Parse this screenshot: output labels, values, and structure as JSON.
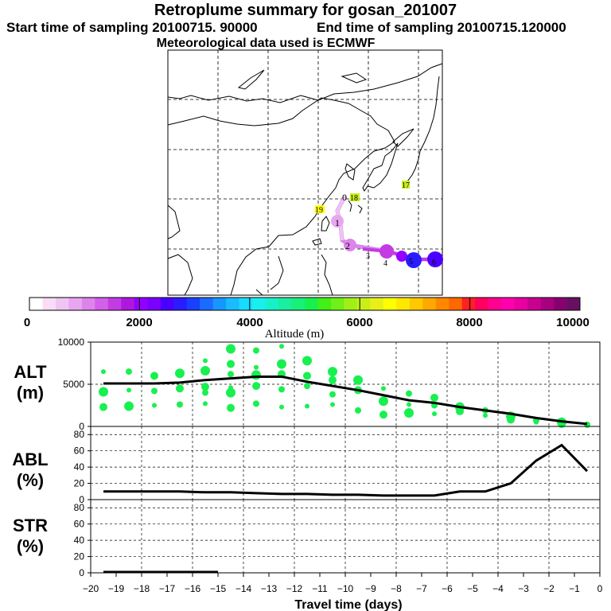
{
  "header": {
    "title": "Retroplume summary for gosan_201007",
    "start_label": "Start time of sampling 20100715. 90000",
    "end_label": "End time of sampling 20100715.120000",
    "met_label": "Meteorological data used is ECMWF"
  },
  "colorbar": {
    "ticks": [
      "0",
      "2000",
      "4000",
      "6000",
      "8000",
      "10000"
    ],
    "label": "Altitude (m)",
    "colors": [
      "#ffffff",
      "#f7ddf7",
      "#f0c4f3",
      "#e8a6f0",
      "#df83ec",
      "#d45fe8",
      "#c43be4",
      "#ad18e0",
      "#9400ff",
      "#7a00ff",
      "#4b00ff",
      "#2a1cff",
      "#1840ff",
      "#1a6cff",
      "#1896ff",
      "#18bcff",
      "#18dcff",
      "#18f0f0",
      "#18f0c8",
      "#18f0a0",
      "#18f078",
      "#18f050",
      "#40f018",
      "#70f018",
      "#a0f018",
      "#c8f018",
      "#e8f018",
      "#ffff00",
      "#ffe800",
      "#ffc800",
      "#ffa800",
      "#ff8800",
      "#ff6800",
      "#ff2020",
      "#ff0060",
      "#ff0090",
      "#ff00b0",
      "#e800a0",
      "#c80090",
      "#a80080",
      "#880070",
      "#681060"
    ]
  },
  "map_labels": {
    "day_labels": [
      "0",
      "1",
      "2",
      "3",
      "4",
      "5",
      "6",
      "17",
      "18",
      "19"
    ]
  },
  "panels": {
    "alt": {
      "name": "ALT",
      "unit": "(m)"
    },
    "abl": {
      "name": "ABL",
      "unit": "(%)"
    },
    "str": {
      "name": "STR",
      "unit": "(%)"
    }
  },
  "xaxis_label": "Travel time (days)",
  "chart_data": [
    {
      "type": "line",
      "title": "ALT",
      "ylabel": "(m)",
      "ylim": [
        0,
        10000
      ],
      "yticks": [
        0,
        5000,
        10000
      ],
      "xlim": [
        -20,
        0
      ],
      "x": [
        -19.5,
        -17.5,
        -16.5,
        -15.5,
        -14.5,
        -13.5,
        -12.5,
        -11.5,
        -10.5,
        -9.5,
        -8.5,
        -7.5,
        -6.5,
        -5.5,
        -4.5,
        -3.5,
        -2.5,
        -1.5,
        -0.5
      ],
      "series": [
        {
          "name": "mean altitude",
          "values": [
            5100,
            5100,
            5200,
            5500,
            5700,
            5900,
            5900,
            5300,
            4800,
            4300,
            3700,
            3100,
            2800,
            2300,
            1900,
            1500,
            1000,
            600,
            300
          ]
        }
      ],
      "scatter_points": [
        [
          -19.5,
          6500
        ],
        [
          -19.5,
          4100
        ],
        [
          -19.5,
          2300
        ],
        [
          -18.5,
          6500
        ],
        [
          -18.5,
          4300
        ],
        [
          -18.5,
          2400
        ],
        [
          -17.5,
          6000
        ],
        [
          -17.5,
          4200
        ],
        [
          -17.5,
          2500
        ],
        [
          -16.5,
          6300
        ],
        [
          -16.5,
          4500
        ],
        [
          -16.5,
          2600
        ],
        [
          -15.5,
          7800
        ],
        [
          -15.5,
          6600
        ],
        [
          -15.5,
          4700
        ],
        [
          -15.5,
          4000
        ],
        [
          -15.5,
          2700
        ],
        [
          -14.5,
          9200
        ],
        [
          -14.5,
          7400
        ],
        [
          -14.5,
          6200
        ],
        [
          -14.5,
          4600
        ],
        [
          -14.5,
          4000
        ],
        [
          -14.5,
          2200
        ],
        [
          -13.5,
          9000
        ],
        [
          -13.5,
          7000
        ],
        [
          -13.5,
          6100
        ],
        [
          -13.5,
          4800
        ],
        [
          -13.5,
          2700
        ],
        [
          -12.5,
          9500
        ],
        [
          -12.5,
          7400
        ],
        [
          -12.5,
          6200
        ],
        [
          -12.5,
          4400
        ],
        [
          -12.5,
          2300
        ],
        [
          -11.5,
          7800
        ],
        [
          -11.5,
          6000
        ],
        [
          -11.5,
          4800
        ],
        [
          -11.5,
          2400
        ],
        [
          -10.5,
          6500
        ],
        [
          -10.5,
          5500
        ],
        [
          -10.5,
          3800
        ],
        [
          -10.5,
          2600
        ],
        [
          -9.5,
          5500
        ],
        [
          -9.5,
          4300
        ],
        [
          -9.5,
          1900
        ],
        [
          -8.5,
          4500
        ],
        [
          -8.5,
          3000
        ],
        [
          -8.5,
          1400
        ],
        [
          -7.5,
          3900
        ],
        [
          -7.5,
          2600
        ],
        [
          -7.5,
          1600
        ],
        [
          -6.5,
          3400
        ],
        [
          -6.5,
          2500
        ],
        [
          -6.5,
          1500
        ],
        [
          -5.5,
          2300
        ],
        [
          -5.5,
          1800
        ],
        [
          -4.5,
          1900
        ],
        [
          -4.5,
          1300
        ],
        [
          -3.5,
          1200
        ],
        [
          -3.5,
          800
        ],
        [
          -2.5,
          700
        ],
        [
          -2.5,
          500
        ],
        [
          -1.5,
          500
        ],
        [
          -1.5,
          300
        ],
        [
          -0.5,
          200
        ]
      ]
    },
    {
      "type": "line",
      "title": "ABL",
      "ylabel": "(%)",
      "ylim": [
        0,
        90
      ],
      "yticks": [
        0,
        20,
        40,
        60,
        80
      ],
      "xlim": [
        -20,
        0
      ],
      "x": [
        -19.5,
        -18.5,
        -17.5,
        -16.5,
        -15.5,
        -14.5,
        -13.5,
        -12.5,
        -11.5,
        -10.5,
        -9.5,
        -8.5,
        -7.5,
        -7,
        -6.5,
        -5.5,
        -4.5,
        -3.5,
        -2.5,
        -1.5,
        -0.5
      ],
      "series": [
        {
          "name": "ABL fraction",
          "values": [
            10,
            10,
            10,
            10,
            9,
            9,
            8,
            7,
            7,
            6,
            6,
            5,
            5,
            5,
            5,
            10,
            10,
            20,
            48,
            67,
            35
          ]
        }
      ]
    },
    {
      "type": "line",
      "title": "STR",
      "ylabel": "(%)",
      "ylim": [
        0,
        90
      ],
      "yticks": [
        0,
        20,
        40,
        60,
        80
      ],
      "xlim": [
        -20,
        0
      ],
      "xticks": [
        -20,
        -19,
        -18,
        -17,
        -16,
        -15,
        -14,
        -13,
        -12,
        -11,
        -10,
        -9,
        -8,
        -7,
        -6,
        -5,
        -4,
        -3,
        -2,
        -1,
        0
      ],
      "xlabel": "Travel time (days)",
      "x": [
        -19.5,
        -15
      ],
      "series": [
        {
          "name": "STR fraction",
          "values": [
            1,
            1
          ]
        }
      ]
    }
  ]
}
